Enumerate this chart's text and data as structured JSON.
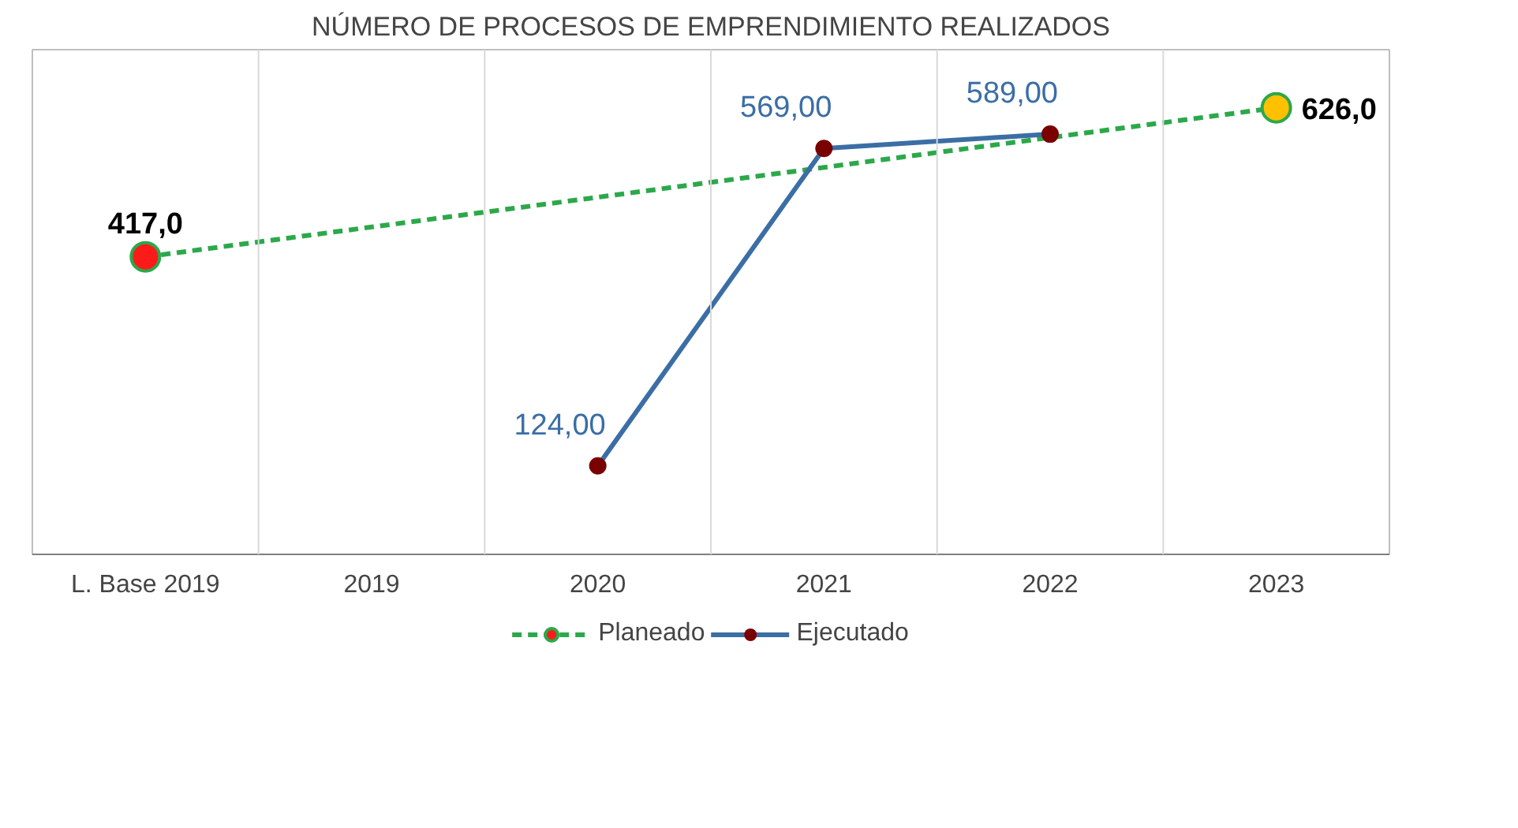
{
  "chart_data": {
    "type": "line",
    "title": "NÚMERO DE PROCESOS DE EMPRENDIMIENTO REALIZADOS",
    "categories": [
      "L. Base 2019",
      "2019",
      "2020",
      "2021",
      "2022",
      "2023"
    ],
    "series": [
      {
        "name": "Planeado",
        "color": "#2ca84a",
        "line_style": "dashed",
        "colors": [
          "#ff1a1a",
          null,
          null,
          null,
          null,
          "#ffc000"
        ],
        "values": [
          417,
          null,
          null,
          null,
          null,
          626
        ],
        "value_labels": [
          "417,0",
          null,
          null,
          null,
          null,
          "626,0"
        ]
      },
      {
        "name": "Ejecutado",
        "color": "#3b6ea5",
        "line_style": "solid",
        "colors": [
          null,
          null,
          "#7a0000",
          "#7a0000",
          "#7a0000",
          null
        ],
        "values": [
          null,
          null,
          124,
          569,
          589,
          null
        ],
        "value_labels": [
          null,
          null,
          "124,00",
          "569,00",
          "589,00",
          null
        ]
      }
    ],
    "marker": "circle",
    "grid": "x",
    "legend": "bottom",
    "tick_labels": "x"
  }
}
